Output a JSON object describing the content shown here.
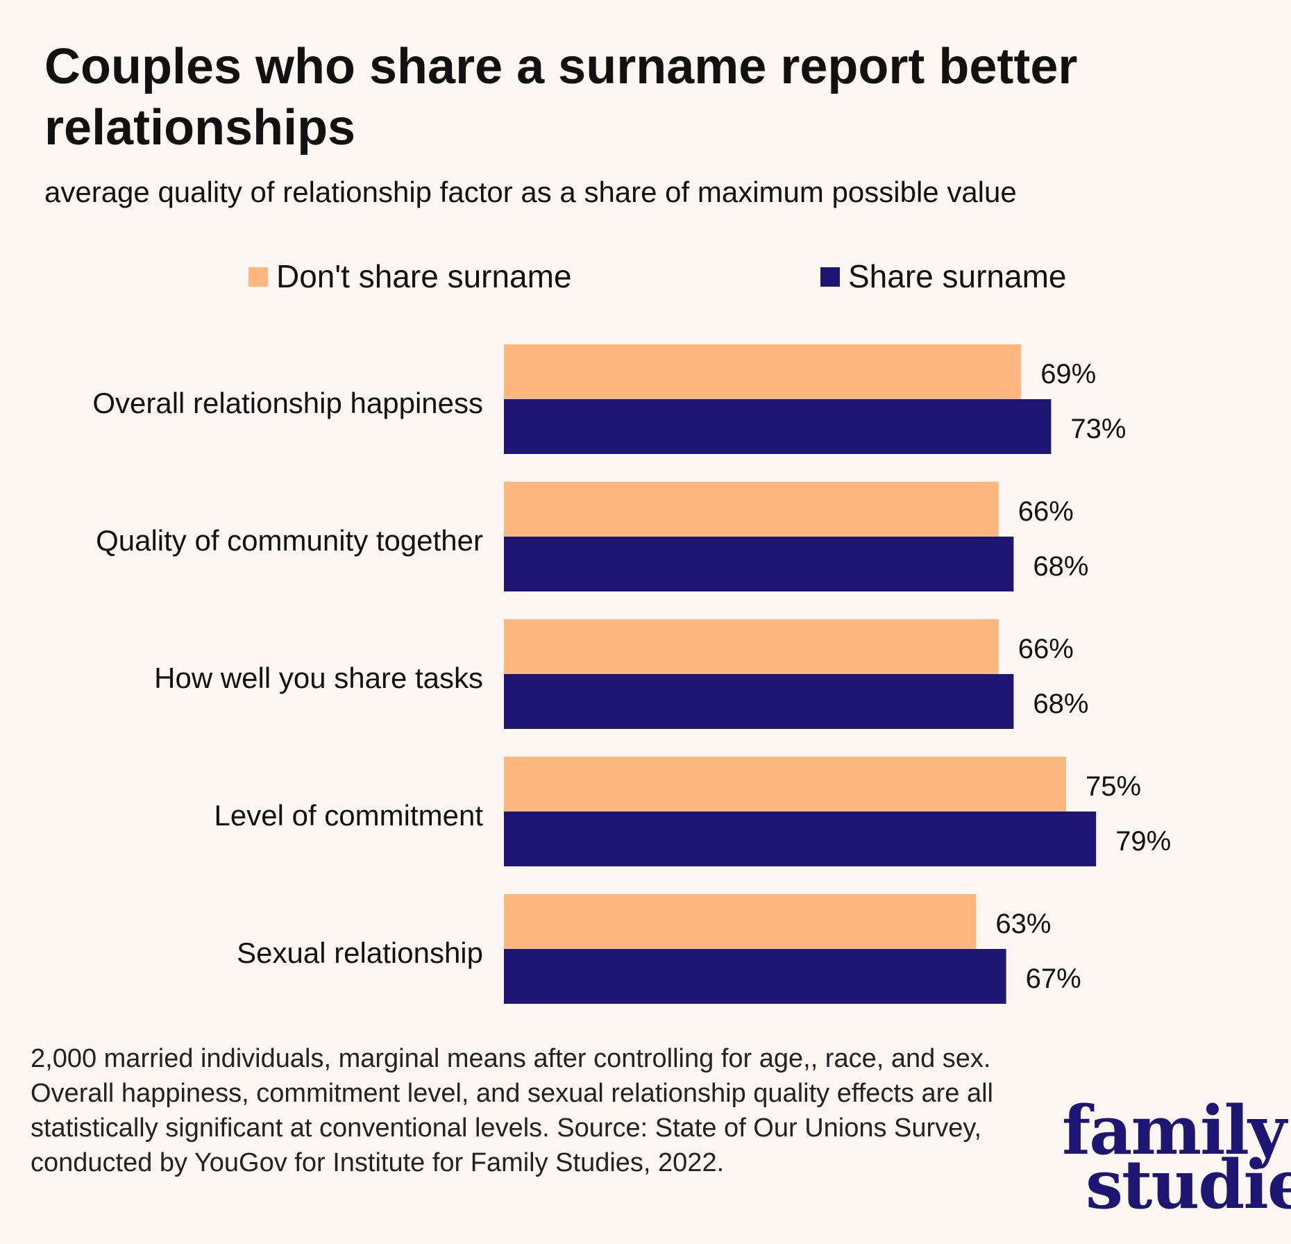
{
  "chart_data": {
    "type": "bar",
    "orientation": "horizontal",
    "title": "Couples who share a surname report better relationships",
    "subtitle": "average quality of relationship factor as a share of maximum possible value",
    "categories": [
      "Overall relationship happiness",
      "Quality of community together",
      "How well you share tasks",
      "Level of commitment",
      "Sexual relationship"
    ],
    "series": [
      {
        "name": "Don't share surname",
        "color": "#ffb77e",
        "values": [
          69,
          66,
          66,
          75,
          63
        ],
        "labels": [
          "69%",
          "66%",
          "66%",
          "75%",
          "63%"
        ]
      },
      {
        "name": "Share surname",
        "color": "#1d1773",
        "values": [
          73,
          68,
          68,
          79,
          67
        ],
        "labels": [
          "73%",
          "68%",
          "68%",
          "79%",
          "67%"
        ]
      }
    ],
    "xlim": [
      0,
      100
    ],
    "grid": false,
    "legend_position": "top"
  },
  "footnote": "2,000 married individuals, marginal means after controlling for age,, race, and sex. Overall happiness, commitment level, and sexual relationship quality effects are all statistically significant at conventional levels. Source: State of Our Unions Survey, conducted by YouGov for Institute for Family Studies, 2022.",
  "logo": {
    "line1": "family",
    "line2": "studies"
  }
}
